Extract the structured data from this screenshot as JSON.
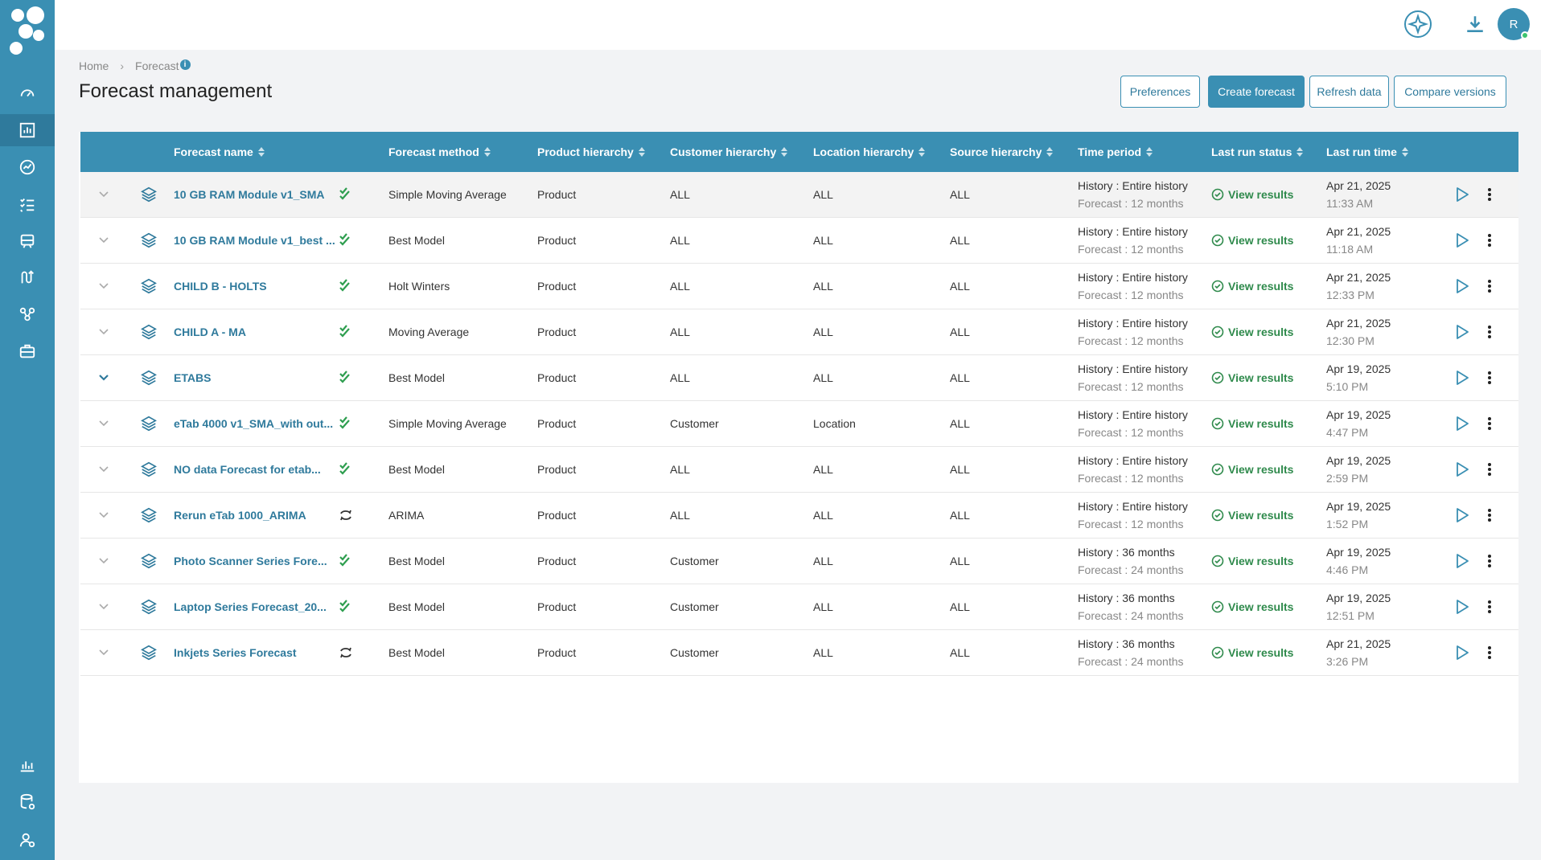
{
  "app": {
    "avatar_initial": "R"
  },
  "breadcrumb": {
    "home": "Home",
    "current": "Forecast",
    "info": "i"
  },
  "page": {
    "title": "Forecast management"
  },
  "toolbar": {
    "preferences": "Preferences",
    "create": "Create forecast",
    "refresh": "Refresh data",
    "compare": "Compare versions"
  },
  "table": {
    "headers": {
      "name": "Forecast name",
      "method": "Forecast method",
      "product": "Product hierarchy",
      "customer": "Customer hierarchy",
      "location": "Location hierarchy",
      "source": "Source hierarchy",
      "time": "Time period",
      "status": "Last run status",
      "runtime": "Last run time"
    },
    "rows": [
      {
        "name": "10 GB RAM Module v1_SMA",
        "state": "done",
        "method": "Simple Moving Average",
        "product": "Product",
        "customer": "ALL",
        "location": "ALL",
        "source": "ALL",
        "history": "History : Entire history",
        "forecast": "Forecast : 12 months",
        "status": "View results",
        "date": "Apr 21, 2025",
        "time": "11:33 AM",
        "expanded": false
      },
      {
        "name": "10 GB RAM Module v1_best ...",
        "state": "done",
        "method": "Best Model",
        "product": "Product",
        "customer": "ALL",
        "location": "ALL",
        "source": "ALL",
        "history": "History : Entire history",
        "forecast": "Forecast : 12 months",
        "status": "View results",
        "date": "Apr 21, 2025",
        "time": "11:18 AM",
        "expanded": false
      },
      {
        "name": "CHILD B - HOLTS",
        "state": "done",
        "method": "Holt Winters",
        "product": "Product",
        "customer": "ALL",
        "location": "ALL",
        "source": "ALL",
        "history": "History : Entire history",
        "forecast": "Forecast : 12 months",
        "status": "View results",
        "date": "Apr 21, 2025",
        "time": "12:33 PM",
        "expanded": false
      },
      {
        "name": "CHILD A - MA",
        "state": "done",
        "method": "Moving Average",
        "product": "Product",
        "customer": "ALL",
        "location": "ALL",
        "source": "ALL",
        "history": "History : Entire history",
        "forecast": "Forecast : 12 months",
        "status": "View results",
        "date": "Apr 21, 2025",
        "time": "12:30 PM",
        "expanded": false
      },
      {
        "name": "ETABS",
        "state": "done",
        "method": "Best Model",
        "product": "Product",
        "customer": "ALL",
        "location": "ALL",
        "source": "ALL",
        "history": "History : Entire history",
        "forecast": "Forecast : 12 months",
        "status": "View results",
        "date": "Apr 19, 2025",
        "time": "5:10 PM",
        "expanded": true
      },
      {
        "name": "eTab 4000 v1_SMA_with out...",
        "state": "done",
        "method": "Simple Moving Average",
        "product": "Product",
        "customer": "Customer",
        "location": "Location",
        "source": "ALL",
        "history": "History : Entire history",
        "forecast": "Forecast : 12 months",
        "status": "View results",
        "date": "Apr 19, 2025",
        "time": "4:47 PM",
        "expanded": false
      },
      {
        "name": "NO data Forecast for etab...",
        "state": "done",
        "method": "Best Model",
        "product": "Product",
        "customer": "ALL",
        "location": "ALL",
        "source": "ALL",
        "history": "History : Entire history",
        "forecast": "Forecast : 12 months",
        "status": "View results",
        "date": "Apr 19, 2025",
        "time": "2:59 PM",
        "expanded": false
      },
      {
        "name": "Rerun eTab 1000_ARIMA",
        "state": "rerun",
        "method": "ARIMA",
        "product": "Product",
        "customer": "ALL",
        "location": "ALL",
        "source": "ALL",
        "history": "History : Entire history",
        "forecast": "Forecast : 12 months",
        "status": "View results",
        "date": "Apr 19, 2025",
        "time": "1:52 PM",
        "expanded": false
      },
      {
        "name": "Photo Scanner Series Fore...",
        "state": "done",
        "method": "Best Model",
        "product": "Product",
        "customer": "Customer",
        "location": "ALL",
        "source": "ALL",
        "history": "History : 36 months",
        "forecast": "Forecast : 24 months",
        "status": "View results",
        "date": "Apr 19, 2025",
        "time": "4:46 PM",
        "expanded": false
      },
      {
        "name": "Laptop Series Forecast_20...",
        "state": "done",
        "method": "Best Model",
        "product": "Product",
        "customer": "Customer",
        "location": "ALL",
        "source": "ALL",
        "history": "History : 36 months",
        "forecast": "Forecast : 24 months",
        "status": "View results",
        "date": "Apr 19, 2025",
        "time": "12:51 PM",
        "expanded": false
      },
      {
        "name": "Inkjets Series Forecast",
        "state": "rerun",
        "method": "Best Model",
        "product": "Product",
        "customer": "Customer",
        "location": "ALL",
        "source": "ALL",
        "history": "History : 36 months",
        "forecast": "Forecast : 24 months",
        "status": "View results",
        "date": "Apr 21, 2025",
        "time": "3:26 PM",
        "expanded": false
      }
    ]
  },
  "colors": {
    "accent": "#3a8fb3",
    "success": "#2f8a4c",
    "check": "#2e9e4f"
  },
  "icons": {
    "sidebar": [
      "dashboard-icon",
      "forecast-chart-icon",
      "analytics-icon",
      "checklist-icon",
      "supply-icon",
      "routing-icon",
      "network-icon",
      "briefcase-icon",
      "reports-icon",
      "database-settings-icon",
      "user-settings-icon"
    ],
    "top": [
      "ai-sparkle-icon",
      "download-icon"
    ]
  }
}
